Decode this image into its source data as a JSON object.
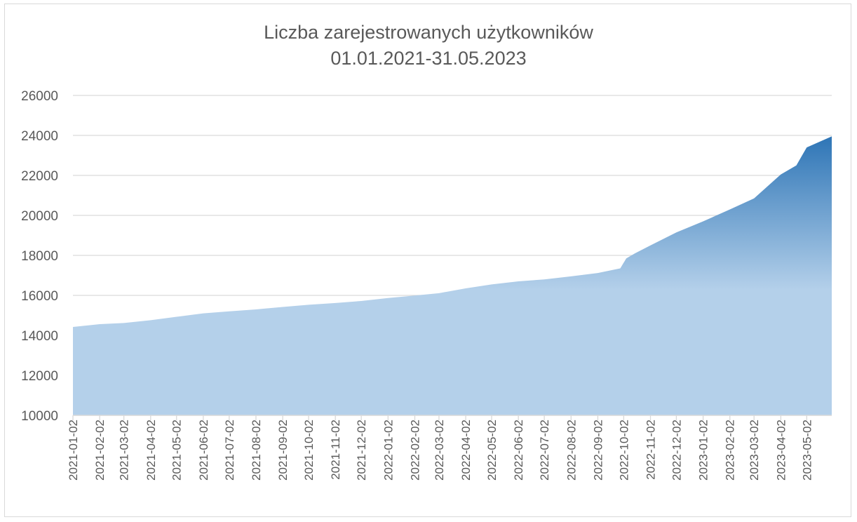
{
  "chart_data": {
    "type": "area",
    "title": "Liczba zarejestrowanych użytkowników",
    "subtitle": "01.01.2021-31.05.2023",
    "xlabel": "",
    "ylabel": "",
    "ylim": [
      10000,
      26000
    ],
    "yticks": [
      "10000",
      "12000",
      "14000",
      "16000",
      "18000",
      "20000",
      "22000",
      "24000",
      "26000"
    ],
    "grid": true,
    "legend": "none",
    "x_range": [
      "2021-01-02",
      "2023-05-31"
    ],
    "xticks": [
      "2021-01-02",
      "2021-02-02",
      "2021-03-02",
      "2021-04-02",
      "2021-05-02",
      "2021-06-02",
      "2021-07-02",
      "2021-08-02",
      "2021-09-02",
      "2021-10-02",
      "2021-11-02",
      "2021-12-02",
      "2022-01-02",
      "2022-02-02",
      "2022-03-02",
      "2022-04-02",
      "2022-05-02",
      "2022-06-02",
      "2022-07-02",
      "2022-08-02",
      "2022-09-02",
      "2022-10-02",
      "2022-11-02",
      "2022-12-02",
      "2023-01-02",
      "2023-02-02",
      "2023-03-02",
      "2023-04-02",
      "2023-05-02"
    ],
    "colors": {
      "fill_light": "#b4d0ea",
      "fill_dark": "#2e75b6",
      "grid": "#d9d9d9",
      "text": "#595959"
    },
    "series": [
      {
        "x": [
          "2021-01-02",
          "2021-02-02",
          "2021-03-02",
          "2021-04-02",
          "2021-05-02",
          "2021-06-02",
          "2021-07-02",
          "2021-08-02",
          "2021-09-02",
          "2021-10-02",
          "2021-11-02",
          "2021-12-02",
          "2022-01-02",
          "2022-02-02",
          "2022-03-02",
          "2022-04-02",
          "2022-05-02",
          "2022-06-02",
          "2022-07-02",
          "2022-08-02",
          "2022-09-02",
          "2022-09-28",
          "2022-10-05",
          "2022-10-15",
          "2022-11-02",
          "2022-12-02",
          "2023-01-02",
          "2023-02-02",
          "2023-03-02",
          "2023-04-02",
          "2023-04-20",
          "2023-05-02",
          "2023-05-31"
        ],
        "values": [
          14420,
          14560,
          14620,
          14760,
          14930,
          15100,
          15200,
          15300,
          15420,
          15530,
          15620,
          15720,
          15870,
          15990,
          16110,
          16350,
          16550,
          16700,
          16800,
          16950,
          17120,
          17350,
          17850,
          18100,
          18500,
          19150,
          19700,
          20300,
          20850,
          22050,
          22500,
          23400,
          23950
        ]
      }
    ]
  }
}
